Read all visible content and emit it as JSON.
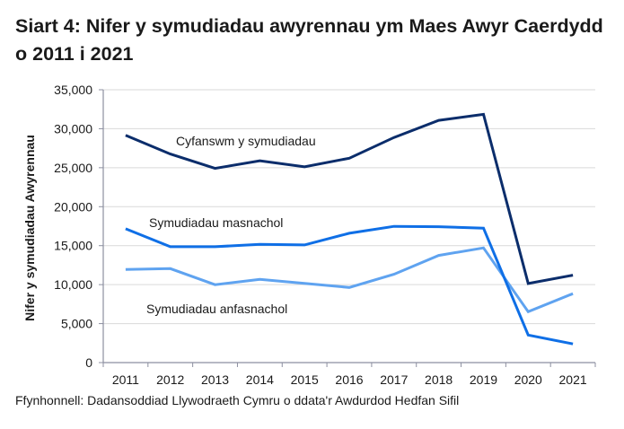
{
  "title": "Siart 4: Nifer y symudiadau awyrennau ym Maes Awyr Caerdydd o 2011 i 2021",
  "source": "Ffynhonnell: Dadansoddiad Llywodraeth Cymru o ddata'r Awdurdod Hedfan Sifil",
  "colors": {
    "total": "#0b2d6b",
    "commercial": "#0f6fe6",
    "non_commercial": "#5fa3f0",
    "gridline": "#d9d9d9",
    "axis": "#8c8fa0"
  },
  "chart_data": {
    "type": "line",
    "title": "Siart 4: Nifer y symudiadau awyrennau ym Maes Awyr Caerdydd o 2011 i 2021",
    "xlabel": "",
    "ylabel": "Nifer y symudiadau Awyrennau",
    "ylim": [
      0,
      35000
    ],
    "yticks": [
      "0",
      "5,000",
      "10,000",
      "15,000",
      "20,000",
      "25,000",
      "30,000",
      "35,000"
    ],
    "grid": true,
    "legend": "inline labels",
    "categories": [
      "2011",
      "2012",
      "2013",
      "2014",
      "2015",
      "2016",
      "2017",
      "2018",
      "2019",
      "2020",
      "2021"
    ],
    "series": [
      {
        "name": "Cyfanswm y symudiadau",
        "values": [
          29150,
          26760,
          24920,
          25890,
          25120,
          26220,
          28880,
          31070,
          31840,
          10140,
          11210
        ]
      },
      {
        "name": "Symudiadau masnachol",
        "values": [
          17170,
          14860,
          14860,
          15170,
          15090,
          16590,
          17480,
          17430,
          17250,
          3540,
          2390
        ]
      },
      {
        "name": "Symudiadau anfasnachol",
        "values": [
          11950,
          12060,
          9990,
          10680,
          10170,
          9640,
          11330,
          13750,
          14710,
          6530,
          8840
        ]
      }
    ],
    "annotations": [
      {
        "text": "Cyfanswm y symudiadau",
        "series": 0
      },
      {
        "text": "Symudiadau masnachol",
        "series": 1
      },
      {
        "text": "Symudiadau anfasnachol",
        "series": 2
      }
    ]
  }
}
